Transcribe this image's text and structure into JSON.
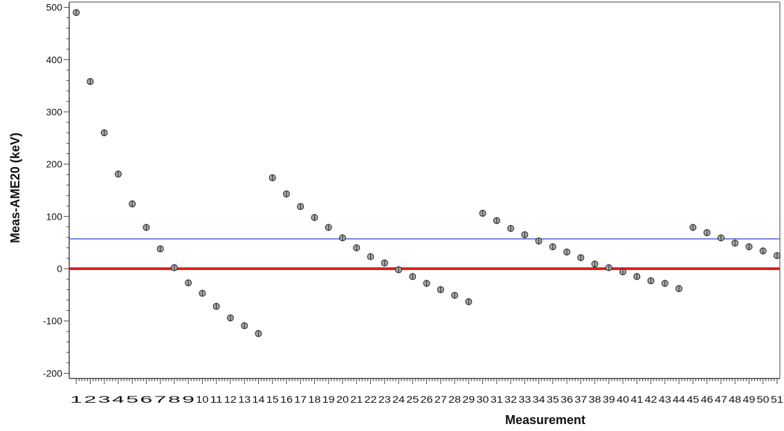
{
  "chart_data": {
    "type": "scatter",
    "title": "",
    "xlabel": "Measurement",
    "ylabel": "Meas-AME20 (keV)",
    "xlim": [
      0.5,
      51.2
    ],
    "ylim": [
      -210,
      510
    ],
    "yticks": [
      -200,
      -100,
      0,
      100,
      200,
      300,
      400,
      500
    ],
    "x": [
      1,
      2,
      3,
      4,
      5,
      6,
      7,
      8,
      9,
      10,
      11,
      12,
      13,
      14,
      15,
      16,
      17,
      18,
      19,
      20,
      21,
      22,
      23,
      24,
      25,
      26,
      27,
      28,
      29,
      30,
      31,
      32,
      33,
      34,
      35,
      36,
      37,
      38,
      39,
      40,
      41,
      42,
      43,
      44,
      45,
      46,
      47,
      48,
      49,
      50,
      51
    ],
    "series": [
      {
        "values": [
          490,
          358,
          260,
          181,
          124,
          79,
          38,
          2,
          -27,
          -47,
          -72,
          -94,
          -109,
          -124,
          174,
          143,
          119,
          98,
          79,
          59,
          40,
          23,
          11,
          -2,
          -15,
          -28,
          -40,
          -51,
          -63,
          106,
          92,
          77,
          65,
          53,
          42,
          32,
          21,
          9,
          2,
          -6,
          -15,
          -23,
          -28,
          -38,
          79,
          69,
          59,
          49,
          42,
          34,
          25
        ],
        "color": "#a8a8a8"
      }
    ],
    "reference_lines": [
      {
        "y": 0,
        "color": "#e02020"
      },
      {
        "y": 57,
        "color": "#2a3fcf"
      }
    ],
    "grid": false,
    "legend": "none"
  }
}
